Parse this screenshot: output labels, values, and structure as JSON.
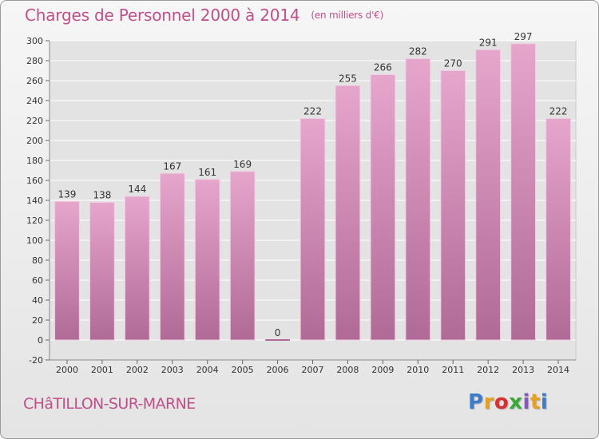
{
  "header": {
    "title": "Charges de Personnel 2000 à 2014",
    "unit": "(en milliers d'€)"
  },
  "footer": {
    "place": "CHâTILLON-SUR-MARNE",
    "brand": "Proxiti"
  },
  "colors": {
    "bar_top": "#e6a6cc",
    "bar_bottom": "#b06a96",
    "title": "#c0508a",
    "grid": "#ffffff"
  },
  "chart_data": {
    "type": "bar",
    "categories": [
      "2000",
      "2001",
      "2002",
      "2003",
      "2004",
      "2005",
      "2006",
      "2007",
      "2008",
      "2009",
      "2010",
      "2011",
      "2012",
      "2013",
      "2014"
    ],
    "values": [
      139,
      138,
      144,
      167,
      161,
      169,
      0,
      222,
      255,
      266,
      282,
      270,
      291,
      297,
      222
    ],
    "title": "Charges de Personnel 2000 à 2014",
    "ylim": [
      -20,
      300
    ],
    "yticks": [
      -20,
      0,
      20,
      40,
      60,
      80,
      100,
      120,
      140,
      160,
      180,
      200,
      220,
      240,
      260,
      280,
      300
    ],
    "grid": true,
    "data_labels": true
  }
}
